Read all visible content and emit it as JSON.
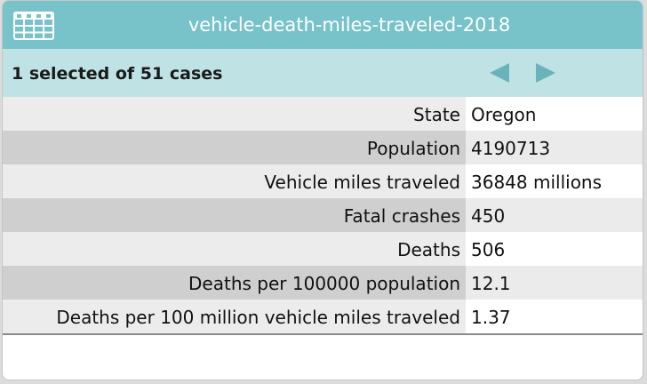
{
  "window": {
    "title": "vehicle-death-miles-traveled-2018",
    "icon": "table-icon"
  },
  "nav": {
    "summary": "1 selected of 51 cases",
    "prev_icon": "triangle-left-icon",
    "next_icon": "triangle-right-icon"
  },
  "colors": {
    "title_bar": "#78c2ca",
    "nav_bar": "#bfe2e5",
    "nav_arrow": "#6bb3ba"
  },
  "case": {
    "rows": [
      {
        "label": "State",
        "value": "Oregon"
      },
      {
        "label": "Population",
        "value": "4190713"
      },
      {
        "label": "Vehicle miles traveled",
        "value": "36848 millions"
      },
      {
        "label": "Fatal crashes",
        "value": "450"
      },
      {
        "label": "Deaths",
        "value": "506"
      },
      {
        "label": "Deaths per 100000 population",
        "value": "12.1"
      },
      {
        "label": "Deaths per 100 million vehicle miles traveled",
        "value": "1.37"
      }
    ]
  }
}
